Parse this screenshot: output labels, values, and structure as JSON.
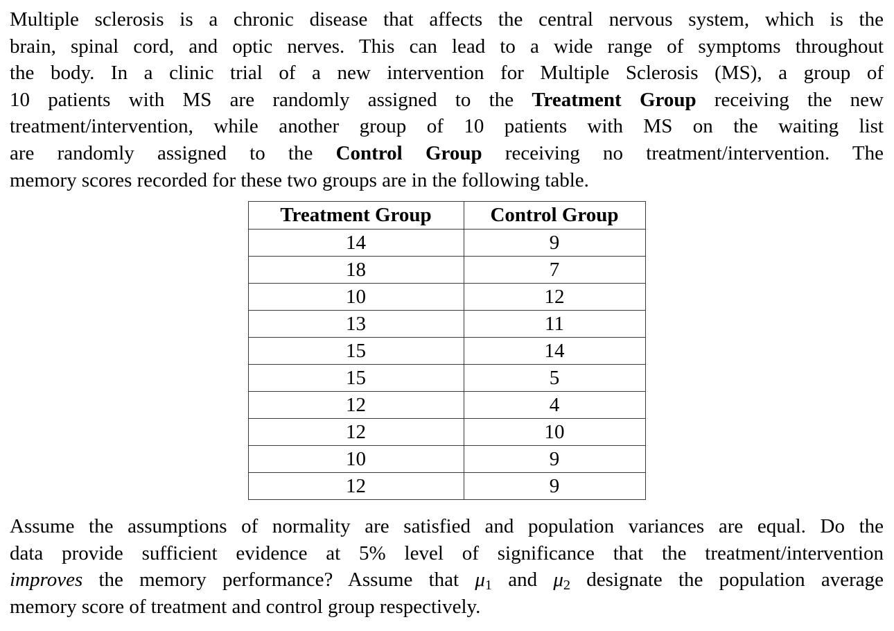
{
  "colors": {
    "background": "#ffffff",
    "text": "#000000",
    "table_border": "#3a3a3a"
  },
  "intro": {
    "lines": [
      {
        "justify": true,
        "segments": [
          {
            "t": "Multiple sclerosis is a chronic disease that affects the central nervous system, which is the",
            "s": "n"
          }
        ]
      },
      {
        "justify": true,
        "segments": [
          {
            "t": "brain, spinal cord, and optic nerves. This can lead to a wide range of symptoms throughout",
            "s": "n"
          }
        ]
      },
      {
        "justify": true,
        "segments": [
          {
            "t": "the body. In a clinic trial of a new intervention for Multiple Sclerosis (MS), a group of",
            "s": "n"
          }
        ]
      },
      {
        "justify": true,
        "segments": [
          {
            "t": "10 patients with MS are randomly assigned to the ",
            "s": "n"
          },
          {
            "t": "Treatment Group",
            "s": "b"
          },
          {
            "t": " receiving the new",
            "s": "n"
          }
        ]
      },
      {
        "justify": true,
        "segments": [
          {
            "t": "treatment/intervention, while another group of 10 patients with MS on the waiting list",
            "s": "n"
          }
        ]
      },
      {
        "justify": true,
        "segments": [
          {
            "t": "are randomly assigned to the ",
            "s": "n"
          },
          {
            "t": "Control Group",
            "s": "b"
          },
          {
            "t": " receiving no treatment/intervention. The",
            "s": "n"
          }
        ]
      },
      {
        "justify": false,
        "segments": [
          {
            "t": "memory scores recorded for these two groups are in the following table.",
            "s": "n"
          }
        ]
      }
    ]
  },
  "table": {
    "headers": [
      "Treatment Group",
      "Control Group"
    ],
    "rows": [
      [
        "14",
        "9"
      ],
      [
        "18",
        "7"
      ],
      [
        "10",
        "12"
      ],
      [
        "13",
        "11"
      ],
      [
        "15",
        "14"
      ],
      [
        "15",
        "5"
      ],
      [
        "12",
        "4"
      ],
      [
        "12",
        "10"
      ],
      [
        "10",
        "9"
      ],
      [
        "12",
        "9"
      ]
    ]
  },
  "closing": {
    "lines": [
      {
        "justify": true,
        "segments": [
          {
            "t": "Assume the assumptions of normality are satisfied and population variances are equal. Do the",
            "s": "n"
          }
        ]
      },
      {
        "justify": true,
        "segments": [
          {
            "t": "data provide sufficient evidence at 5% level of significance that the treatment/intervention",
            "s": "n"
          }
        ]
      },
      {
        "justify": true,
        "segments": [
          {
            "t": "improves",
            "s": "i"
          },
          {
            "t": " the memory performance? Assume that ",
            "s": "n"
          },
          {
            "t": "μ",
            "s": "mi"
          },
          {
            "t": "1",
            "s": "sub"
          },
          {
            "t": " and ",
            "s": "n"
          },
          {
            "t": "μ",
            "s": "mi"
          },
          {
            "t": "2",
            "s": "sub"
          },
          {
            "t": " designate the population average",
            "s": "n"
          }
        ]
      },
      {
        "justify": false,
        "segments": [
          {
            "t": "memory score of treatment and control group respectively.",
            "s": "n"
          }
        ]
      }
    ]
  }
}
